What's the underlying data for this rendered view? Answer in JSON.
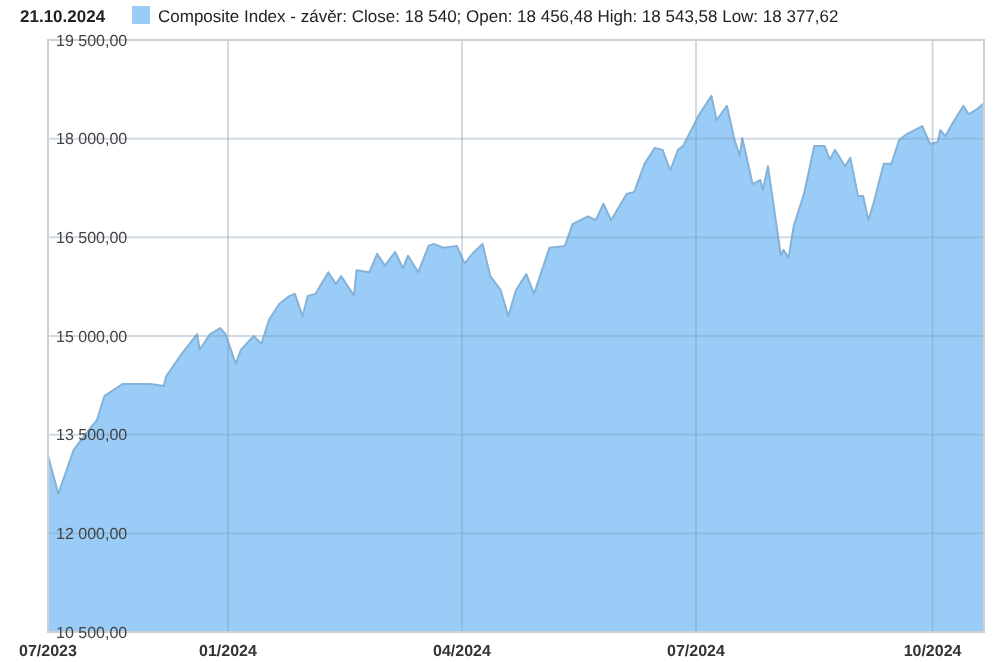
{
  "chart_data": {
    "type": "area",
    "title": "21.10.2024",
    "legend": "top left",
    "grid": true,
    "xlim": [
      "2023-10-23",
      "2024-10-21"
    ],
    "xticks": [
      {
        "value": "2023-10-23",
        "label": "07/2023"
      },
      {
        "value": "2024-01-01",
        "label": "01/2024"
      },
      {
        "value": "2024-04-01",
        "label": "04/2024"
      },
      {
        "value": "2024-07-01",
        "label": "07/2024"
      },
      {
        "value": "2024-10-01",
        "label": "10/2024"
      }
    ],
    "ylim": [
      10500,
      19500
    ],
    "yticks": [
      {
        "value": 10500,
        "label": "10 500,00"
      },
      {
        "value": 12000,
        "label": "12 000,00"
      },
      {
        "value": 13500,
        "label": "13 500,00"
      },
      {
        "value": 15000,
        "label": "15 000,00"
      },
      {
        "value": 16500,
        "label": "16 500,00"
      },
      {
        "value": 18000,
        "label": "18 000,00"
      },
      {
        "value": 19500,
        "label": "19 500,00"
      }
    ],
    "x": [
      "2023-10-23",
      "2023-10-27",
      "2023-11-02",
      "2023-11-06",
      "2023-11-11",
      "2023-11-14",
      "2023-11-21",
      "2023-12-02",
      "2023-12-07",
      "2023-12-08",
      "2023-12-14",
      "2023-12-20",
      "2023-12-21",
      "2023-12-25",
      "2023-12-29",
      "2023-12-31",
      "2024-01-04",
      "2024-01-06",
      "2024-01-11",
      "2024-01-14",
      "2024-01-17",
      "2024-01-21",
      "2024-01-25",
      "2024-01-27",
      "2024-01-30",
      "2024-02-01",
      "2024-02-04",
      "2024-02-09",
      "2024-02-12",
      "2024-02-14",
      "2024-02-19",
      "2024-02-20",
      "2024-02-25",
      "2024-02-28",
      "2024-03-02",
      "2024-03-06",
      "2024-03-09",
      "2024-03-11",
      "2024-03-15",
      "2024-03-19",
      "2024-03-21",
      "2024-03-25",
      "2024-03-30",
      "2024-04-02",
      "2024-04-05",
      "2024-04-09",
      "2024-04-12",
      "2024-04-16",
      "2024-04-19",
      "2024-04-22",
      "2024-04-26",
      "2024-04-29",
      "2024-05-05",
      "2024-05-11",
      "2024-05-14",
      "2024-05-20",
      "2024-05-23",
      "2024-05-26",
      "2024-05-29",
      "2024-06-04",
      "2024-06-07",
      "2024-06-11",
      "2024-06-15",
      "2024-06-18",
      "2024-06-21",
      "2024-06-24",
      "2024-06-26",
      "2024-07-02",
      "2024-07-07",
      "2024-07-09",
      "2024-07-13",
      "2024-07-16",
      "2024-07-18",
      "2024-07-19",
      "2024-07-23",
      "2024-07-26",
      "2024-07-27",
      "2024-07-29",
      "2024-08-03",
      "2024-08-04",
      "2024-08-06",
      "2024-08-08",
      "2024-08-12",
      "2024-08-16",
      "2024-08-20",
      "2024-08-22",
      "2024-08-24",
      "2024-08-28",
      "2024-08-30",
      "2024-09-02",
      "2024-09-04",
      "2024-09-06",
      "2024-09-08",
      "2024-09-12",
      "2024-09-15",
      "2024-09-18",
      "2024-09-21",
      "2024-09-27",
      "2024-09-30",
      "2024-10-03",
      "2024-10-04",
      "2024-10-06",
      "2024-10-09",
      "2024-10-13",
      "2024-10-15",
      "2024-10-18",
      "2024-10-21"
    ],
    "series": [
      {
        "name": "Composite Index - závěr: Close: 18 540; Open: 18 456,48 High: 18 543,58 Low: 18 377,62",
        "color": "#99cdf7",
        "values": [
          13180,
          12600,
          13270,
          13480,
          13720,
          14090,
          14270,
          14270,
          14240,
          14390,
          14730,
          15030,
          14790,
          15030,
          15120,
          15030,
          14580,
          14790,
          15000,
          14880,
          15250,
          15490,
          15610,
          15640,
          15300,
          15610,
          15640,
          15970,
          15790,
          15910,
          15610,
          16000,
          15970,
          16250,
          16070,
          16280,
          16030,
          16220,
          15970,
          16370,
          16400,
          16340,
          16370,
          16100,
          16250,
          16400,
          15910,
          15700,
          15300,
          15700,
          15940,
          15640,
          16340,
          16370,
          16700,
          16820,
          16760,
          17010,
          16760,
          17160,
          17190,
          17620,
          17860,
          17830,
          17520,
          17830,
          17890,
          18350,
          18650,
          18280,
          18500,
          17980,
          17740,
          18010,
          17310,
          17370,
          17220,
          17580,
          16220,
          16310,
          16190,
          16670,
          17160,
          17890,
          17890,
          17680,
          17830,
          17580,
          17710,
          17130,
          17130,
          16760,
          17010,
          17620,
          17620,
          17980,
          18070,
          18190,
          17920,
          17950,
          18130,
          18040,
          18250,
          18500,
          18370,
          18440,
          18540
        ]
      }
    ]
  }
}
